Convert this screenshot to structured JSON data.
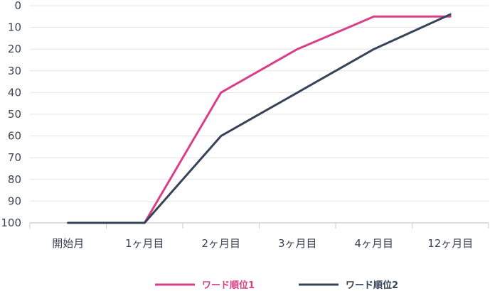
{
  "chart_data": {
    "type": "line",
    "title": "",
    "xlabel": "",
    "ylabel": "",
    "categories": [
      "開始月",
      "1ヶ月目",
      "2ヶ月目",
      "3ヶ月目",
      "4ヶ月目",
      "12ヶ月目"
    ],
    "y_ticks": [
      "0",
      "10",
      "20",
      "30",
      "40",
      "50",
      "60",
      "70",
      "80",
      "90",
      "100"
    ],
    "ylim": [
      0,
      100
    ],
    "y_inverted": true,
    "grid": "horizontal",
    "legend_position": "bottom-center",
    "series": [
      {
        "name": "ワード順位1",
        "color": "#d83f87",
        "values": [
          100,
          100,
          40,
          20,
          5,
          5
        ]
      },
      {
        "name": "ワード順位2",
        "color": "#374357",
        "values": [
          100,
          100,
          60,
          40,
          20,
          4
        ]
      }
    ],
    "colors": {
      "grid": "#e3e4e8",
      "axis": "#c9cbd1",
      "text": "#3c4354"
    }
  }
}
